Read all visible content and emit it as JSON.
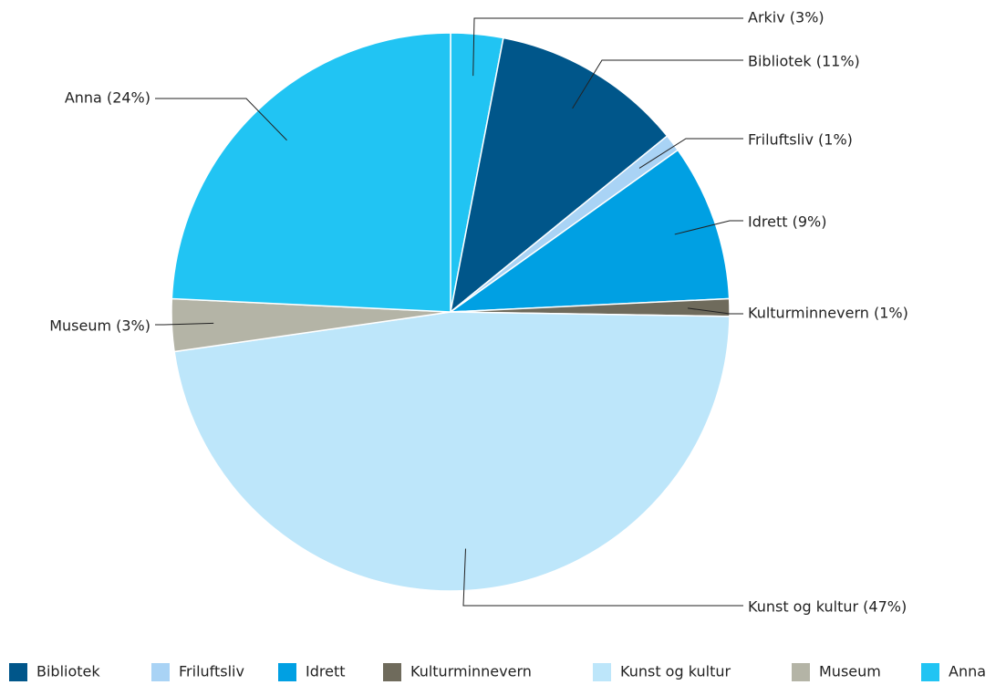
{
  "chart_data": {
    "type": "pie",
    "categories": [
      "Arkiv",
      "Bibliotek",
      "Friluftsliv",
      "Idrett",
      "Kulturminnevern",
      "Kunst og kultur",
      "Museum",
      "Anna"
    ],
    "values": [
      3,
      11,
      1,
      9,
      1,
      47,
      3,
      24
    ],
    "value_labels": [
      "Arkiv (3%)",
      "Bibliotek (11%)",
      "Friluftsliv (1%)",
      "Idrett (9%)",
      "Kulturminnevern (1%)",
      "Kunst og kultur (47%)",
      "Museum (3%)",
      "Anna (24%)"
    ],
    "colors": [
      "#21c4f3",
      "#00568a",
      "#a9d3f5",
      "#00a0e3",
      "#6f6b5c",
      "#bde6fa",
      "#b4b4a6",
      "#21c4f3"
    ],
    "legend": "bottom"
  }
}
